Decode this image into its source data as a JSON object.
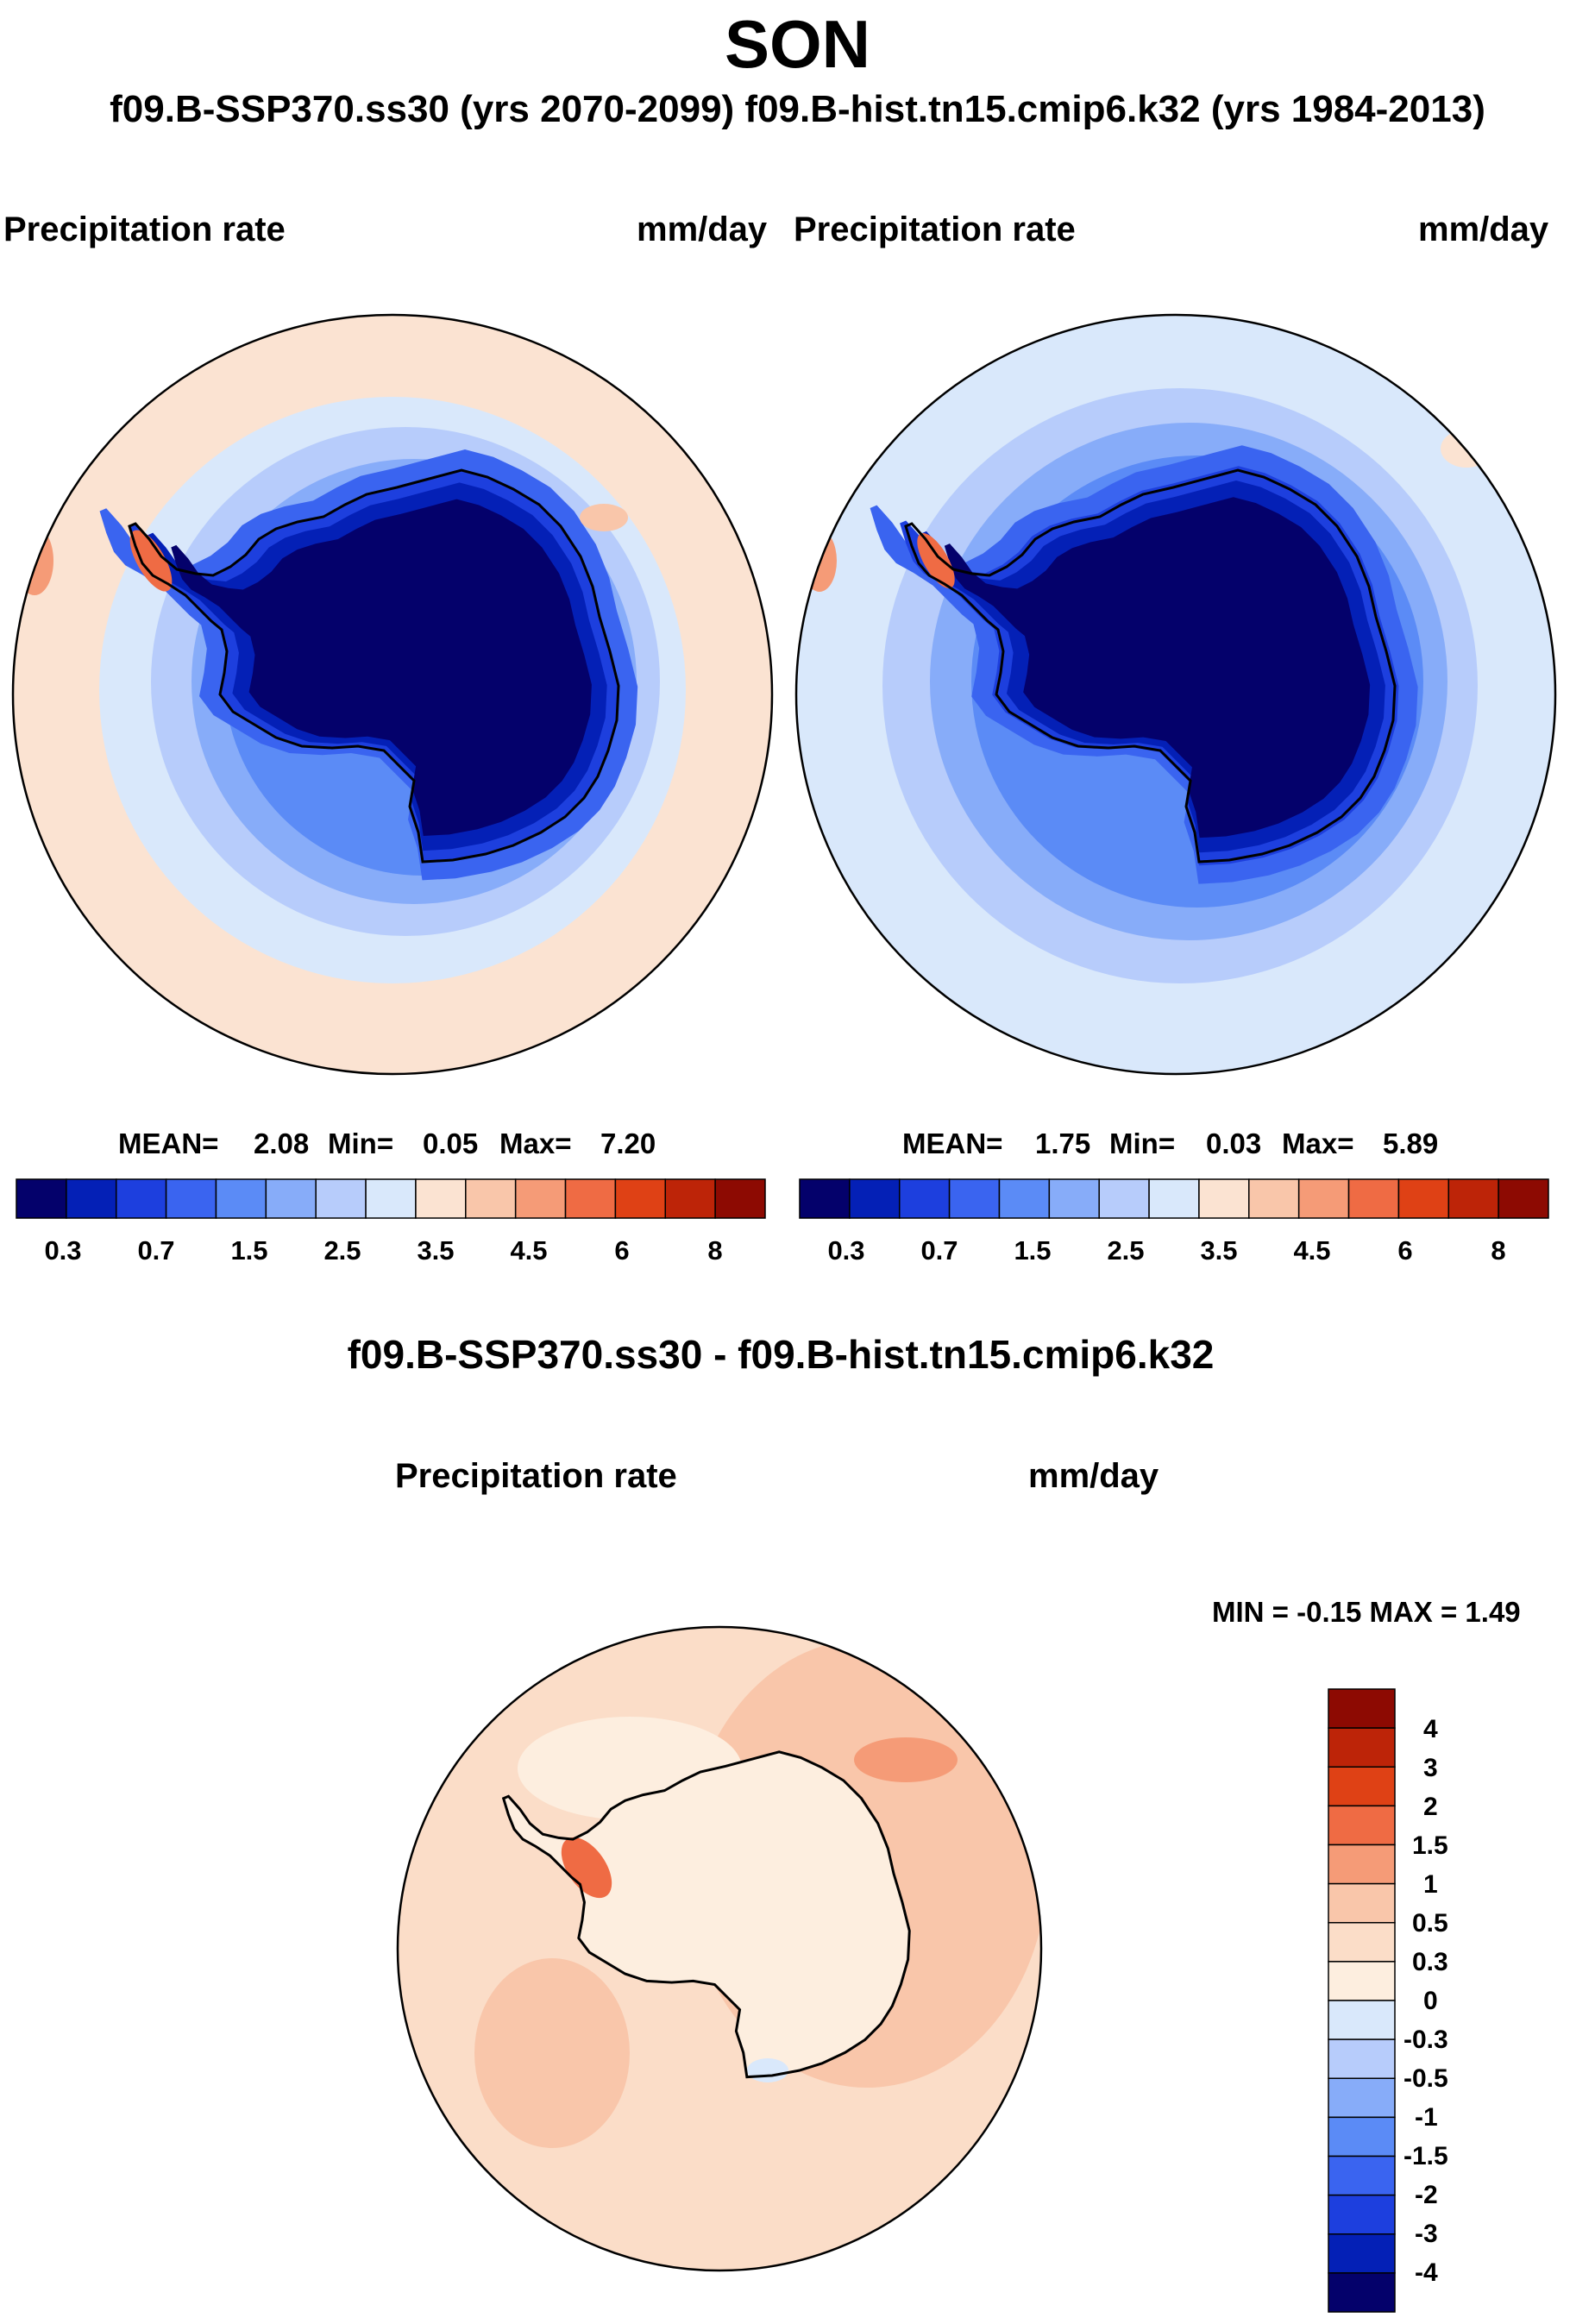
{
  "page": {
    "title": "SON",
    "subtitle": "f09.B-SSP370.ss30 (yrs 2070-2099)  f09.B-hist.tn15.cmip6.k32 (yrs 1984-2013)"
  },
  "chart_data": [
    {
      "type": "heatmap",
      "projection": "south-polar-stereographic",
      "case": "f09.B-SSP370.ss30 (yrs 2070-2099)",
      "left_label": "Precipitation rate",
      "right_label": "mm/day",
      "stats": {
        "mean_label": "MEAN=",
        "mean": "2.08",
        "min_label": "Min=",
        "min": "0.05",
        "max_label": "Max=",
        "max": "7.20"
      },
      "colorbar": {
        "tick_labels": [
          "0.3",
          "0.7",
          "1.5",
          "2.5",
          "3.5",
          "4.5",
          "6",
          "8"
        ],
        "colors": [
          "#04016b",
          "#0420b6",
          "#1d3fde",
          "#3a64f0",
          "#5b8bf6",
          "#87acf9",
          "#b7ccfb",
          "#d9e8fb",
          "#fbe3d2",
          "#f9c6aa",
          "#f59b77",
          "#ef6b44",
          "#df4115",
          "#bd2408",
          "#8d0a02"
        ]
      }
    },
    {
      "type": "heatmap",
      "projection": "south-polar-stereographic",
      "case": "f09.B-hist.tn15.cmip6.k32 (yrs 1984-2013)",
      "left_label": "Precipitation rate",
      "right_label": "mm/day",
      "stats": {
        "mean_label": "MEAN=",
        "mean": "1.75",
        "min_label": "Min=",
        "min": "0.03",
        "max_label": "Max=",
        "max": "5.89"
      },
      "colorbar": {
        "tick_labels": [
          "0.3",
          "0.7",
          "1.5",
          "2.5",
          "3.5",
          "4.5",
          "6",
          "8"
        ],
        "colors": [
          "#04016b",
          "#0420b6",
          "#1d3fde",
          "#3a64f0",
          "#5b8bf6",
          "#87acf9",
          "#b7ccfb",
          "#d9e8fb",
          "#fbe3d2",
          "#f9c6aa",
          "#f59b77",
          "#ef6b44",
          "#df4115",
          "#bd2408",
          "#8d0a02"
        ]
      }
    },
    {
      "type": "heatmap",
      "projection": "south-polar-stereographic",
      "title": "f09.B-SSP370.ss30 - f09.B-hist.tn15.cmip6.k32",
      "left_label": "Precipitation rate",
      "right_label": "mm/day",
      "stats": {
        "text": "MIN =  -0.15 MAX =   1.49"
      },
      "colorbar": {
        "orientation": "vertical",
        "tick_labels": [
          "4",
          "3",
          "2",
          "1.5",
          "1",
          "0.5",
          "0.3",
          "0",
          "-0.3",
          "-0.5",
          "-1",
          "-1.5",
          "-2",
          "-3",
          "-4"
        ],
        "colors_top_to_bottom": [
          "#8d0a02",
          "#bd2408",
          "#df4115",
          "#ef6b44",
          "#f59b77",
          "#f9c6aa",
          "#fbddc8",
          "#fdeedf",
          "#d9e8fb",
          "#b7ccfb",
          "#87acf9",
          "#5b8bf6",
          "#3a64f0",
          "#1d3fde",
          "#0420b6",
          "#04016b"
        ]
      }
    }
  ]
}
